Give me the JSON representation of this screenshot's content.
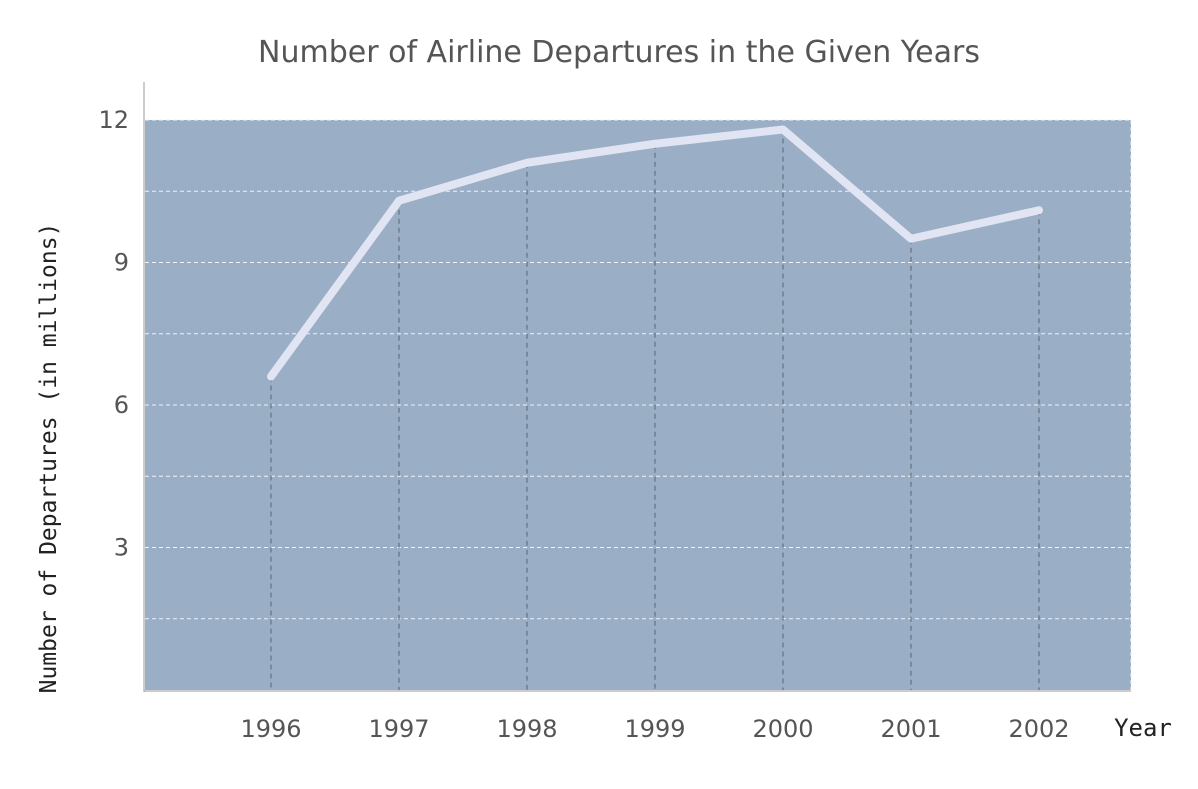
{
  "chart_data": {
    "type": "line",
    "title": "Number of Airline Departures in the Given Years",
    "xlabel": "Year",
    "ylabel": "Number of Departures (in millions)",
    "categories": [
      "1996",
      "1997",
      "1998",
      "1999",
      "2000",
      "2001",
      "2002"
    ],
    "series": [
      {
        "values": [
          6.6,
          10.3,
          11.1,
          11.5,
          11.8,
          9.5,
          10.1
        ]
      }
    ],
    "ylim": [
      0,
      12
    ],
    "yticks": [
      "3",
      "6",
      "9",
      "12"
    ],
    "grid": true,
    "legend": "none"
  },
  "colors": {
    "plot_background": "#9aafc6",
    "line": "#e1e4f3",
    "grid_horizontal": "#f0f2f8",
    "grid_vertical": "#5c6470",
    "text": "#555555",
    "axis": "#999999"
  }
}
